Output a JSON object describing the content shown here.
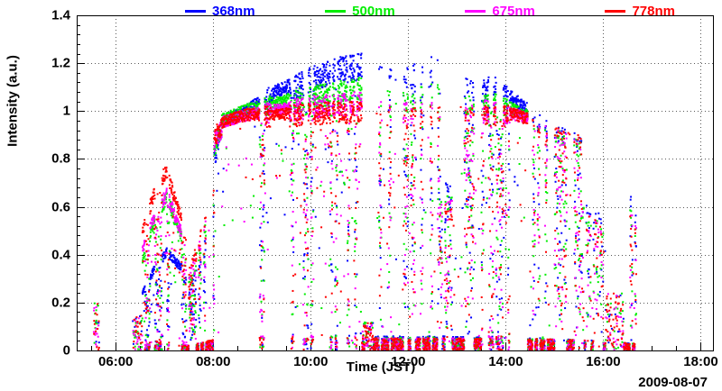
{
  "chart_data": {
    "type": "scatter",
    "title": "",
    "xlabel": "Time (JST)",
    "ylabel": "Intensity (a.u.)",
    "date_label": "2009-08-07",
    "xlim": [
      5.2,
      18.25
    ],
    "ylim": [
      0,
      1.4
    ],
    "grid": "dotted",
    "x_ticks": [
      {
        "t": 6,
        "label": "06:00"
      },
      {
        "t": 8,
        "label": "08:00"
      },
      {
        "t": 10,
        "label": "10:00"
      },
      {
        "t": 12,
        "label": "12:00"
      },
      {
        "t": 14,
        "label": "14:00"
      },
      {
        "t": 16,
        "label": "16:00"
      },
      {
        "t": 18,
        "label": "18:00"
      }
    ],
    "x_minor_step_hours": 0.5,
    "y_ticks": [
      {
        "v": 0,
        "label": "0"
      },
      {
        "v": 0.2,
        "label": "0.2"
      },
      {
        "v": 0.4,
        "label": "0.4"
      },
      {
        "v": 0.6,
        "label": "0.6"
      },
      {
        "v": 0.8,
        "label": "0.8"
      },
      {
        "v": 1,
        "label": "1"
      },
      {
        "v": 1.2,
        "label": "1.2"
      },
      {
        "v": 1.4,
        "label": "1.4"
      }
    ],
    "y_minor_step": 0.04,
    "series": [
      {
        "name": "368nm",
        "color": "#0000ff",
        "envelope": [
          [
            5.2,
            0.12
          ],
          [
            6.4,
            0.18
          ],
          [
            6.8,
            0.35
          ],
          [
            7.05,
            0.42
          ],
          [
            7.5,
            0.32
          ],
          [
            8.0,
            0.8
          ],
          [
            8.2,
            0.97
          ],
          [
            8.7,
            1.02
          ],
          [
            9.3,
            1.1
          ],
          [
            9.9,
            1.15
          ],
          [
            10.5,
            1.2
          ],
          [
            11.0,
            1.22
          ],
          [
            11.4,
            1.2
          ],
          [
            12.0,
            1.18
          ],
          [
            12.5,
            1.24
          ],
          [
            13.0,
            1.15
          ],
          [
            13.4,
            1.12
          ],
          [
            13.8,
            1.12
          ],
          [
            14.2,
            1.06
          ],
          [
            14.6,
            1.0
          ],
          [
            15.0,
            0.95
          ],
          [
            15.5,
            0.9
          ],
          [
            16.0,
            0.8
          ],
          [
            16.6,
            0.68
          ],
          [
            17.0,
            0.4
          ]
        ]
      },
      {
        "name": "500nm",
        "color": "#00ee00",
        "envelope": [
          [
            5.2,
            0.12
          ],
          [
            6.4,
            0.3
          ],
          [
            6.8,
            0.55
          ],
          [
            7.05,
            0.65
          ],
          [
            7.5,
            0.4
          ],
          [
            8.0,
            0.85
          ],
          [
            8.2,
            0.98
          ],
          [
            8.7,
            1.02
          ],
          [
            9.3,
            1.05
          ],
          [
            9.9,
            1.08
          ],
          [
            10.5,
            1.1
          ],
          [
            11.0,
            1.12
          ],
          [
            11.4,
            1.1
          ],
          [
            12.0,
            1.08
          ],
          [
            12.5,
            1.12
          ],
          [
            13.0,
            1.08
          ],
          [
            13.4,
            1.06
          ],
          [
            13.8,
            1.05
          ],
          [
            14.2,
            1.02
          ],
          [
            14.6,
            0.98
          ],
          [
            15.0,
            0.93
          ],
          [
            15.5,
            0.88
          ],
          [
            16.0,
            0.75
          ],
          [
            16.6,
            0.62
          ],
          [
            17.0,
            0.35
          ]
        ]
      },
      {
        "name": "675nm",
        "color": "#ff00ff",
        "envelope": [
          [
            5.2,
            0.14
          ],
          [
            6.4,
            0.35
          ],
          [
            6.8,
            0.58
          ],
          [
            7.05,
            0.67
          ],
          [
            7.5,
            0.42
          ],
          [
            8.0,
            0.88
          ],
          [
            8.2,
            0.97
          ],
          [
            8.7,
            1.0
          ],
          [
            9.3,
            1.02
          ],
          [
            9.9,
            1.04
          ],
          [
            10.5,
            1.05
          ],
          [
            11.0,
            1.06
          ],
          [
            11.4,
            1.05
          ],
          [
            12.0,
            1.04
          ],
          [
            12.5,
            1.06
          ],
          [
            13.0,
            1.04
          ],
          [
            13.4,
            1.03
          ],
          [
            13.8,
            1.02
          ],
          [
            14.2,
            1.0
          ],
          [
            14.6,
            0.97
          ],
          [
            15.0,
            0.93
          ],
          [
            15.5,
            0.88
          ],
          [
            16.0,
            0.72
          ],
          [
            16.6,
            0.6
          ],
          [
            17.0,
            0.35
          ]
        ]
      },
      {
        "name": "778nm",
        "color": "#ff0000",
        "envelope": [
          [
            5.2,
            0.16
          ],
          [
            6.4,
            0.4
          ],
          [
            6.8,
            0.68
          ],
          [
            7.05,
            0.77
          ],
          [
            7.5,
            0.45
          ],
          [
            8.0,
            0.9
          ],
          [
            8.2,
            0.97
          ],
          [
            8.7,
            1.0
          ],
          [
            9.3,
            1.0
          ],
          [
            9.9,
            1.01
          ],
          [
            10.5,
            1.02
          ],
          [
            11.0,
            1.02
          ],
          [
            11.4,
            1.02
          ],
          [
            12.0,
            1.01
          ],
          [
            12.5,
            1.03
          ],
          [
            13.0,
            1.02
          ],
          [
            13.4,
            1.01
          ],
          [
            13.8,
            1.01
          ],
          [
            14.2,
            1.0
          ],
          [
            14.6,
            0.97
          ],
          [
            15.0,
            0.94
          ],
          [
            15.5,
            0.9
          ],
          [
            16.0,
            0.72
          ],
          [
            16.6,
            0.6
          ],
          [
            17.0,
            0.35
          ]
        ]
      }
    ],
    "cloud_segments": [
      {
        "t0": 5.55,
        "t1": 5.66,
        "mode": "low",
        "max": 0.2,
        "density": 0.5
      },
      {
        "t0": 6.35,
        "t1": 6.55,
        "mode": "low",
        "max": 0.15,
        "density": 0.6
      },
      {
        "t0": 6.55,
        "t1": 7.45,
        "mode": "broken",
        "density": 1.0
      },
      {
        "t0": 7.45,
        "t1": 8.02,
        "mode": "streaky",
        "density": 0.9,
        "cap": 0.75
      },
      {
        "t0": 8.02,
        "t1": 8.18,
        "mode": "broken",
        "density": 1.0
      },
      {
        "t0": 8.18,
        "t1": 8.95,
        "mode": "clear",
        "density": 1.0
      },
      {
        "t0": 8.95,
        "t1": 9.18,
        "mode": "broken",
        "density": 1.0
      },
      {
        "t0": 9.18,
        "t1": 9.55,
        "mode": "clear",
        "density": 1.0
      },
      {
        "t0": 9.55,
        "t1": 11.05,
        "mode": "broken",
        "density": 1.0
      },
      {
        "t0": 11.05,
        "t1": 11.28,
        "mode": "low",
        "max": 0.12,
        "density": 0.7
      },
      {
        "t0": 11.28,
        "t1": 12.65,
        "mode": "streaky",
        "density": 1.0,
        "cap": 1.0
      },
      {
        "t0": 12.65,
        "t1": 13.05,
        "mode": "streaky",
        "density": 0.7,
        "cap": 0.6
      },
      {
        "t0": 13.05,
        "t1": 13.55,
        "mode": "streaky",
        "density": 1.0,
        "cap": 1.0
      },
      {
        "t0": 13.55,
        "t1": 14.08,
        "mode": "broken",
        "density": 1.0
      },
      {
        "t0": 14.08,
        "t1": 14.45,
        "mode": "clear",
        "density": 1.0
      },
      {
        "t0": 14.45,
        "t1": 15.12,
        "mode": "streaky",
        "density": 0.9,
        "cap": 1.0
      },
      {
        "t0": 15.12,
        "t1": 15.55,
        "mode": "streaky",
        "density": 0.8,
        "cap": 1.0
      },
      {
        "t0": 15.55,
        "t1": 16.05,
        "mode": "streaky",
        "density": 0.5,
        "cap": 0.7
      },
      {
        "t0": 16.05,
        "t1": 16.42,
        "mode": "low",
        "max": 0.25,
        "density": 0.5
      },
      {
        "t0": 16.42,
        "t1": 16.68,
        "mode": "streaky",
        "density": 0.8,
        "cap": 0.95
      }
    ],
    "sample_step_hours": 0.00417,
    "point_size": 2,
    "seed": 20090807,
    "colors": {
      "frame": "#000000",
      "grid": "rgba(0,0,0,0.65)",
      "background": "#ffffff"
    }
  }
}
